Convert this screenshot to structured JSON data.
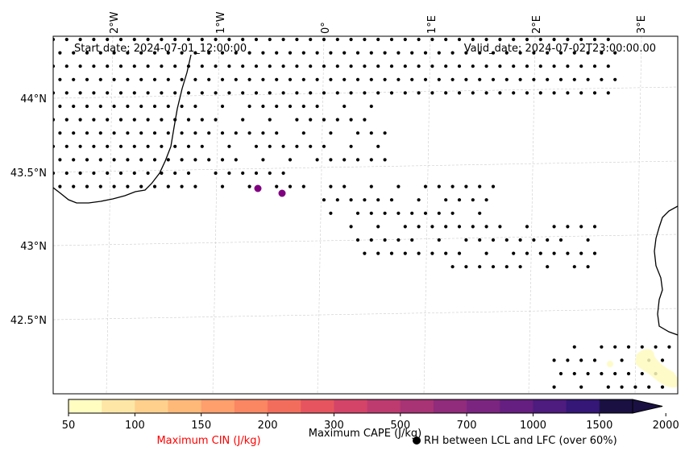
{
  "map": {
    "start_date": "Start date: 2024-07-01_12:00:00",
    "valid_date": "Valid_date: 2024-07-02T23:00:00.00",
    "lon_ticks": [
      "2°W",
      "1°W",
      "0°",
      "1°E",
      "2°E",
      "3°E"
    ],
    "lat_ticks": [
      "44°N",
      "43.5°N",
      "43°N",
      "42.5°N"
    ],
    "colors": {
      "coast": "#000000",
      "grid": "#cccccc",
      "cin_label": "#ff0000",
      "cin_marker": "#800080"
    },
    "cin_markers": [
      {
        "lon": -0.6,
        "lat": 43.39
      },
      {
        "lon": -0.38,
        "lat": 43.36
      }
    ]
  },
  "colorbar": {
    "ticks": [
      "50",
      "100",
      "150",
      "200",
      "300",
      "500",
      "700",
      "1000",
      "1500",
      "2000"
    ],
    "colors": [
      "#fffdc0",
      "#fee7a6",
      "#fed08c",
      "#feb878",
      "#fe9f6c",
      "#fa8662",
      "#f36d5c",
      "#e6555f",
      "#d44468",
      "#be3b70",
      "#a83375",
      "#912b7b",
      "#7b2580",
      "#651f80",
      "#4e1b7e",
      "#341776",
      "#1a1142"
    ],
    "cape_label": "Maximum CAPE (J/kg)",
    "cin_label": "Maximum CIN (J/kg)",
    "rh_label": "RH between LCL and LFC (over 60%)",
    "rh_marker_icon": "filled-circle-icon"
  }
}
